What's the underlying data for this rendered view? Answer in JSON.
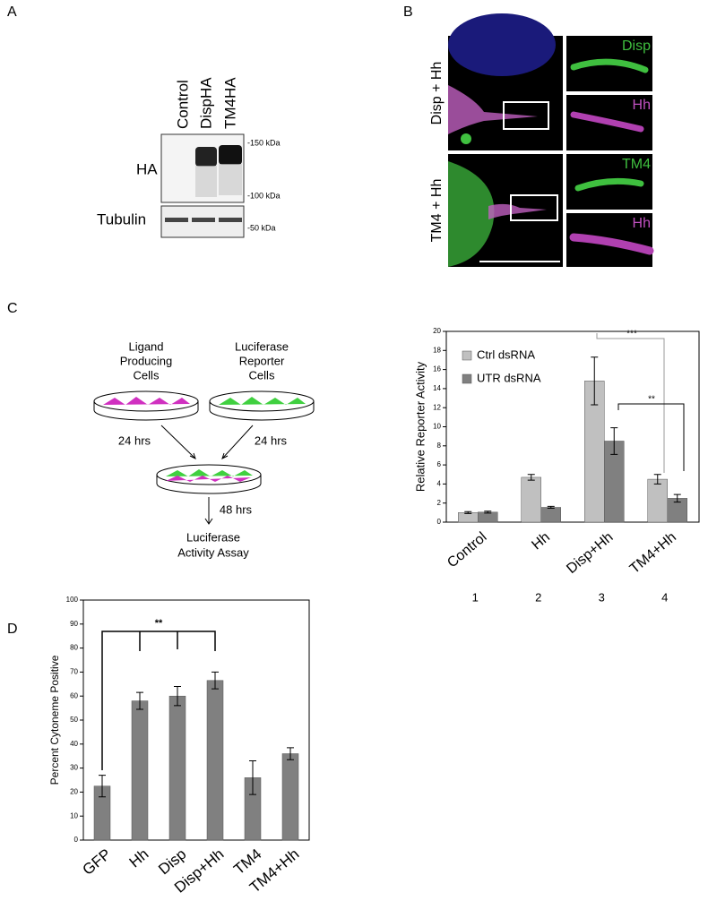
{
  "panels": [
    "A",
    "B",
    "C",
    "D"
  ],
  "blot": {
    "lanes": [
      "Control",
      "DispHA",
      "TM4HA"
    ],
    "rows": [
      "HA",
      "Tubulin"
    ],
    "markers": [
      "-150 kDa",
      "-100 kDa",
      "-50 kDa"
    ]
  },
  "micrographs": {
    "rows": [
      "Disp + Hh",
      "TM4 + Hh"
    ],
    "insets": [
      "Disp",
      "Hh",
      "TM4",
      "Hh"
    ]
  },
  "scheme": {
    "ligand": [
      "Ligand",
      "Producing",
      "Cells"
    ],
    "reporter": [
      "Luciferase",
      "Reporter",
      "Cells"
    ],
    "times": [
      "24 hrs",
      "24 hrs",
      "48 hrs"
    ],
    "assay": [
      "Luciferase",
      "Activity Assay"
    ]
  },
  "chart_data": [
    {
      "type": "bar",
      "ylabel": "Relative Reporter Activity",
      "categories": [
        "Control",
        "Hh",
        "Disp+Hh",
        "TM4+Hh"
      ],
      "category_numbers": [
        "1",
        "2",
        "3",
        "4"
      ],
      "series": [
        {
          "name": "Ctrl dsRNA",
          "color": "#c0c0c0",
          "values": [
            1.0,
            4.7,
            14.8,
            4.5
          ],
          "errors": [
            0.1,
            0.3,
            2.5,
            0.5
          ]
        },
        {
          "name": "UTR dsRNA",
          "color": "#808080",
          "values": [
            1.05,
            1.55,
            8.5,
            2.5
          ],
          "errors": [
            0.1,
            0.1,
            1.4,
            0.4
          ]
        }
      ],
      "ylim": [
        0,
        20
      ],
      "yticks": [
        0,
        2,
        4,
        6,
        8,
        10,
        12,
        14,
        16,
        18,
        20
      ],
      "legend": "upper-left",
      "annotations": [
        "***",
        "**"
      ]
    },
    {
      "type": "bar",
      "ylabel": "Percent Cytoneme Positive",
      "categories": [
        "GFP",
        "Hh",
        "Disp",
        "Disp+Hh",
        "TM4",
        "TM4+Hh"
      ],
      "values": [
        22.5,
        58,
        60,
        66.5,
        26,
        36
      ],
      "errors": [
        4.5,
        3.5,
        4,
        3.5,
        7,
        2.5
      ],
      "color": "#808080",
      "ylim": [
        0,
        100
      ],
      "yticks": [
        0,
        10,
        20,
        30,
        40,
        50,
        60,
        70,
        80,
        90,
        100
      ],
      "annotations": [
        "**"
      ]
    }
  ]
}
